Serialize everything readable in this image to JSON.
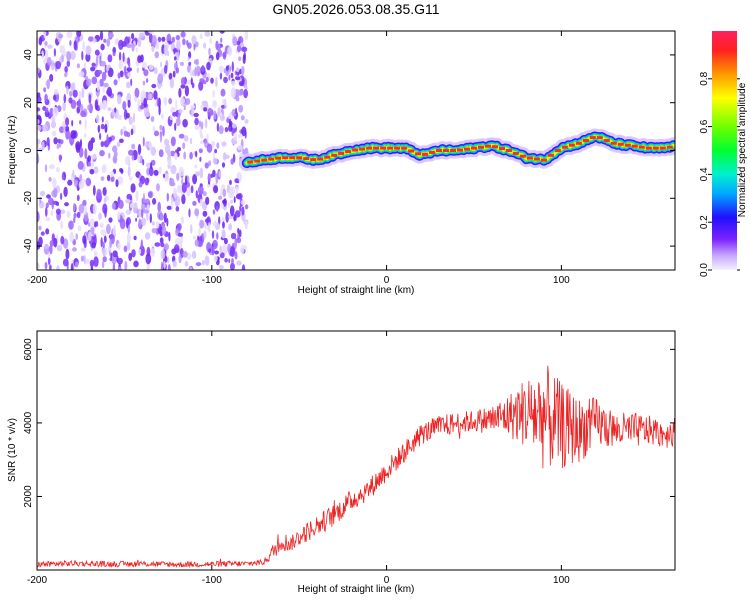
{
  "figure_title": "GN05.2026.053.08.35.G11",
  "colors": {
    "noise": "#7a33ff",
    "snr_line": "#ee2222",
    "axis": "#000000"
  },
  "chart_data": [
    {
      "type": "heatmap",
      "name": "spectrogram",
      "title": "GN05.2026.053.08.35.G11",
      "xlabel": "Height of straight line (km)",
      "ylabel": "Frequency (Hz)",
      "xlim": [
        -200,
        165
      ],
      "ylim": [
        -50,
        50
      ],
      "xticks": [
        -200,
        -100,
        0,
        100
      ],
      "yticks": [
        -40,
        -20,
        0,
        20,
        40
      ],
      "xtick_labels": [
        "-200",
        "-100",
        "0",
        "100"
      ],
      "ytick_labels": [
        "-40",
        "-20",
        "0",
        "20",
        "40"
      ],
      "noise_region_x": [
        -200,
        -80
      ],
      "signal_ridge": {
        "x": [
          -80,
          -70,
          -60,
          -50,
          -40,
          -30,
          -20,
          -10,
          0,
          10,
          20,
          30,
          40,
          50,
          60,
          70,
          80,
          90,
          100,
          110,
          120,
          130,
          140,
          150,
          160,
          165
        ],
        "frequency": [
          -5,
          -4,
          -3,
          -3,
          -4,
          -2,
          0,
          1,
          1,
          1,
          -2,
          0,
          0,
          1,
          2,
          0,
          -3,
          -4,
          1,
          3,
          6,
          3,
          2,
          1,
          1,
          2
        ]
      },
      "colorbar": {
        "label": "Normalized spectral amplitude",
        "range": [
          0.0,
          1.0
        ],
        "ticks": [
          0.0,
          0.2,
          0.4,
          0.6,
          0.8
        ],
        "tick_labels": [
          "0.0",
          "0.2",
          "0.4",
          "0.6",
          "0.8"
        ]
      }
    },
    {
      "type": "line",
      "name": "snr",
      "title": "",
      "xlabel": "Height of straight line (km)",
      "ylabel": "SNR (10 * v/v)",
      "xlim": [
        -200,
        165
      ],
      "ylim": [
        0,
        6500
      ],
      "xticks": [
        -200,
        -100,
        0,
        100
      ],
      "yticks": [
        2000,
        4000,
        6000
      ],
      "xtick_labels": [
        "-200",
        "-100",
        "0",
        "100"
      ],
      "ytick_labels": [
        "2000",
        "4000",
        "6000"
      ],
      "series": [
        {
          "name": "SNR",
          "x": [
            -200,
            -180,
            -160,
            -140,
            -120,
            -100,
            -80,
            -70,
            -65,
            -60,
            -55,
            -50,
            -40,
            -30,
            -20,
            -10,
            0,
            10,
            20,
            30,
            40,
            50,
            60,
            70,
            80,
            90,
            100,
            110,
            120,
            130,
            140,
            150,
            160,
            165
          ],
          "y": [
            150,
            180,
            160,
            170,
            150,
            160,
            170,
            220,
            500,
            800,
            700,
            900,
            1200,
            1500,
            1900,
            2200,
            2700,
            3200,
            3700,
            3900,
            4000,
            4050,
            4100,
            4200,
            4300,
            4200,
            3900,
            3800,
            4000,
            3800,
            3800,
            3800,
            3700,
            3800
          ],
          "noise_amplitude": [
            80,
            80,
            80,
            80,
            80,
            80,
            80,
            80,
            200,
            300,
            200,
            250,
            300,
            300,
            300,
            300,
            300,
            300,
            300,
            300,
            300,
            300,
            400,
            600,
            1000,
            1500,
            1200,
            900,
            700,
            500,
            500,
            400,
            400,
            400
          ]
        }
      ]
    }
  ]
}
